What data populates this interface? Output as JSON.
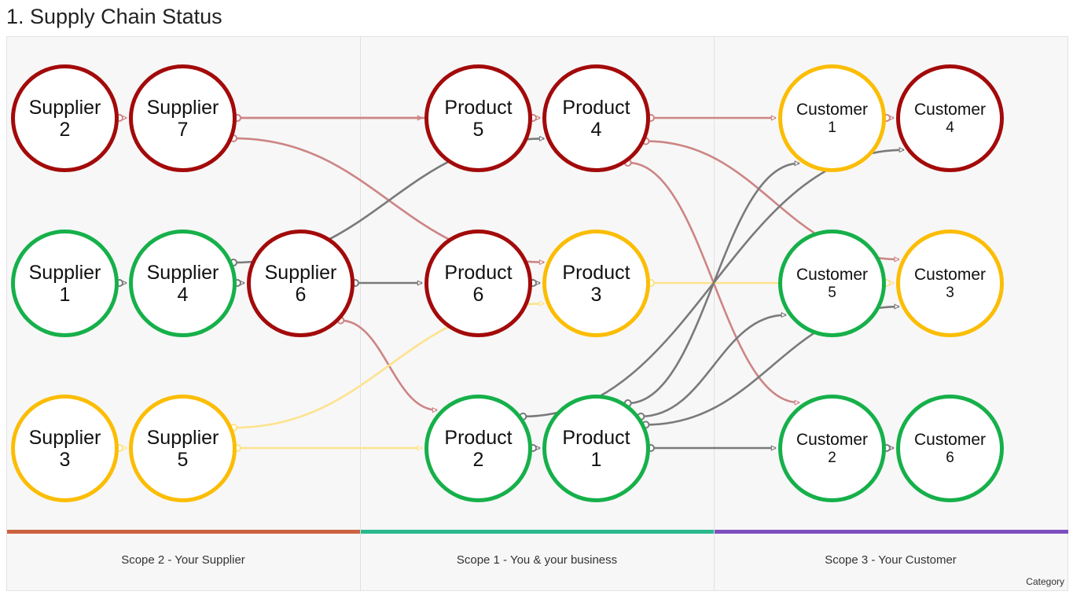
{
  "title": "1. Supply Chain Status",
  "scopes": [
    {
      "label": "Scope 2 - Your Supplier",
      "color": "#cc6340"
    },
    {
      "label": "Scope 1 - You & your business",
      "color": "#2ab88d"
    },
    {
      "label": "Scope 3 - Your Customer",
      "color": "#7f4fc0"
    }
  ],
  "category_label": "Category",
  "status_colors": {
    "red": "#a30a0a",
    "green": "#16b04a",
    "yellow": "#fbbd05"
  },
  "edge_colors": {
    "red": "#cd8585",
    "gray": "#7a7a7a",
    "yellow": "#fde38e"
  },
  "nodes": [
    {
      "id": "supplier-2",
      "line1": "Supplier",
      "line2": "2",
      "status": "red"
    },
    {
      "id": "supplier-7",
      "line1": "Supplier",
      "line2": "7",
      "status": "red"
    },
    {
      "id": "supplier-1",
      "line1": "Supplier",
      "line2": "1",
      "status": "green"
    },
    {
      "id": "supplier-4",
      "line1": "Supplier",
      "line2": "4",
      "status": "green"
    },
    {
      "id": "supplier-6",
      "line1": "Supplier",
      "line2": "6",
      "status": "red"
    },
    {
      "id": "supplier-3",
      "line1": "Supplier",
      "line2": "3",
      "status": "yellow"
    },
    {
      "id": "supplier-5",
      "line1": "Supplier",
      "line2": "5",
      "status": "yellow"
    },
    {
      "id": "product-5",
      "line1": "Product",
      "line2": "5",
      "status": "red"
    },
    {
      "id": "product-4",
      "line1": "Product",
      "line2": "4",
      "status": "red"
    },
    {
      "id": "product-6",
      "line1": "Product",
      "line2": "6",
      "status": "red"
    },
    {
      "id": "product-3",
      "line1": "Product",
      "line2": "3",
      "status": "yellow"
    },
    {
      "id": "product-2",
      "line1": "Product",
      "line2": "2",
      "status": "green"
    },
    {
      "id": "product-1",
      "line1": "Product",
      "line2": "1",
      "status": "green"
    },
    {
      "id": "customer-1",
      "line1": "Customer",
      "line2": "1",
      "status": "yellow"
    },
    {
      "id": "customer-4",
      "line1": "Customer",
      "line2": "4",
      "status": "red"
    },
    {
      "id": "customer-5",
      "line1": "Customer",
      "line2": "5",
      "status": "green"
    },
    {
      "id": "customer-3",
      "line1": "Customer",
      "line2": "3",
      "status": "yellow"
    },
    {
      "id": "customer-2",
      "line1": "Customer",
      "line2": "2",
      "status": "green"
    },
    {
      "id": "customer-6",
      "line1": "Customer",
      "line2": "6",
      "status": "green"
    }
  ],
  "edges": [
    {
      "from": "supplier-2",
      "to": "supplier-7",
      "color": "red"
    },
    {
      "from": "supplier-1",
      "to": "supplier-4",
      "color": "gray"
    },
    {
      "from": "supplier-4",
      "to": "supplier-6",
      "color": "gray"
    },
    {
      "from": "supplier-3",
      "to": "supplier-5",
      "color": "yellow"
    },
    {
      "from": "supplier-7",
      "to": "product-5",
      "color": "red"
    },
    {
      "from": "supplier-7",
      "to": "product-3",
      "color": "red"
    },
    {
      "from": "supplier-7",
      "to": "product-4",
      "color": "red"
    },
    {
      "from": "supplier-4",
      "to": "product-4",
      "color": "gray"
    },
    {
      "from": "supplier-6",
      "to": "product-6",
      "color": "gray"
    },
    {
      "from": "supplier-6",
      "to": "product-2",
      "color": "red"
    },
    {
      "from": "supplier-5",
      "to": "product-3",
      "color": "yellow"
    },
    {
      "from": "supplier-5",
      "to": "product-2",
      "color": "yellow"
    },
    {
      "from": "product-5",
      "to": "product-4",
      "color": "red"
    },
    {
      "from": "product-6",
      "to": "product-3",
      "color": "gray"
    },
    {
      "from": "product-2",
      "to": "product-1",
      "color": "gray"
    },
    {
      "from": "product-4",
      "to": "customer-1",
      "color": "red"
    },
    {
      "from": "product-4",
      "to": "customer-3",
      "color": "red"
    },
    {
      "from": "product-4",
      "to": "customer-2",
      "color": "red"
    },
    {
      "from": "product-3",
      "to": "customer-3",
      "color": "yellow"
    },
    {
      "from": "product-2",
      "to": "customer-4",
      "color": "gray"
    },
    {
      "from": "product-1",
      "to": "customer-1",
      "color": "gray"
    },
    {
      "from": "product-1",
      "to": "customer-5",
      "color": "gray"
    },
    {
      "from": "product-1",
      "to": "customer-3",
      "color": "gray"
    },
    {
      "from": "product-1",
      "to": "customer-2",
      "color": "gray"
    },
    {
      "from": "customer-1",
      "to": "customer-4",
      "color": "red"
    },
    {
      "from": "customer-5",
      "to": "customer-3",
      "color": "yellow"
    },
    {
      "from": "customer-2",
      "to": "customer-6",
      "color": "gray"
    }
  ]
}
